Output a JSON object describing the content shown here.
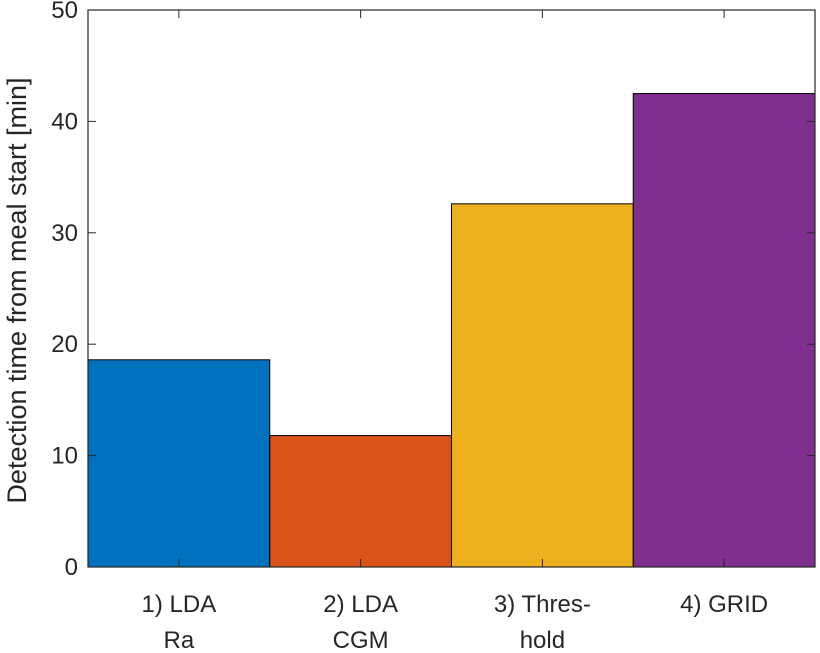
{
  "chart_data": {
    "type": "bar",
    "categories": [
      [
        "1) LDA",
        "Ra"
      ],
      [
        "2) LDA",
        "CGM"
      ],
      [
        "3) Thres-",
        "hold"
      ],
      [
        "4) GRID"
      ]
    ],
    "values": [
      18.6,
      11.8,
      32.6,
      42.5
    ],
    "colors": [
      "#0072BD",
      "#D95319",
      "#EDB120",
      "#7E2F8E"
    ],
    "xlabel": "",
    "ylabel": "Detection time from meal start [min]",
    "ylim": [
      0,
      50
    ],
    "yticks": [
      0,
      10,
      20,
      30,
      40,
      50
    ],
    "grid": false
  }
}
